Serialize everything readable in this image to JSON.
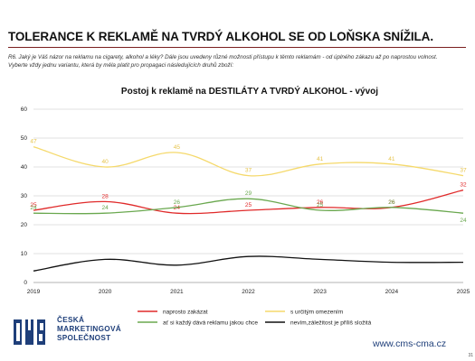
{
  "headline": "TOLERANCE K REKLAMĚ NA TVRDÝ ALKOHOL SE OD LOŇSKA SNÍŽILA.",
  "question": {
    "line1": "R6.  Jaký je Váš názor  na reklamu na cigarety, alkohol a léky? Dále jsou uvedeny různé možnosti přístupu k těmto reklamám - od úplného zákazu až po naprostou volnost.",
    "line2": "Vyberte vždy jednu variantu, která by měla platit pro propagaci následujících druhů zboží:"
  },
  "chart_data": {
    "type": "line",
    "title": "Postoj k reklamě na DESTILÁTY A TVRDÝ ALKOHOL - vývoj",
    "x": [
      "2019",
      "2020",
      "2021",
      "2022",
      "2023",
      "2024",
      "2025"
    ],
    "ylim": [
      0,
      60
    ],
    "yticks": [
      "0",
      "10",
      "20",
      "30",
      "40",
      "50",
      "60"
    ],
    "grid": true,
    "legend_position": "bottom",
    "series": [
      {
        "name": "naprosto zakázat",
        "color": "#e02a2a",
        "labeled": true,
        "values": [
          25,
          28,
          24,
          25,
          26,
          26,
          32
        ],
        "labels": [
          "25",
          "28",
          "24",
          "25",
          "26",
          "26",
          "32"
        ]
      },
      {
        "name": "s určitým omezením",
        "color": "#f5d96b",
        "labeled": true,
        "values": [
          47,
          40,
          45,
          37,
          41,
          41,
          37
        ],
        "labels": [
          "47",
          "40",
          "45",
          "37",
          "41",
          "41",
          "37"
        ]
      },
      {
        "name": "ať si každý dává reklamu jakou chce",
        "color": "#6aa84f",
        "labeled": true,
        "values": [
          24,
          24,
          26,
          29,
          25,
          26,
          24
        ],
        "labels": [
          "24",
          "24",
          "26",
          "29",
          "25",
          "26",
          "24"
        ]
      },
      {
        "name": "nevím,záležitost je příliš složitá",
        "color": "#111111",
        "labeled": false,
        "values": [
          4,
          8,
          6,
          9,
          8,
          7,
          7
        ],
        "labels": []
      }
    ]
  },
  "logo": {
    "line1": "ČESKÁ",
    "line2": "MARKETINGOVÁ",
    "line3": "SPOLEČNOST",
    "mark_color": "#1f3f7a"
  },
  "url": "www.cms-cma.cz",
  "page_number": "31"
}
